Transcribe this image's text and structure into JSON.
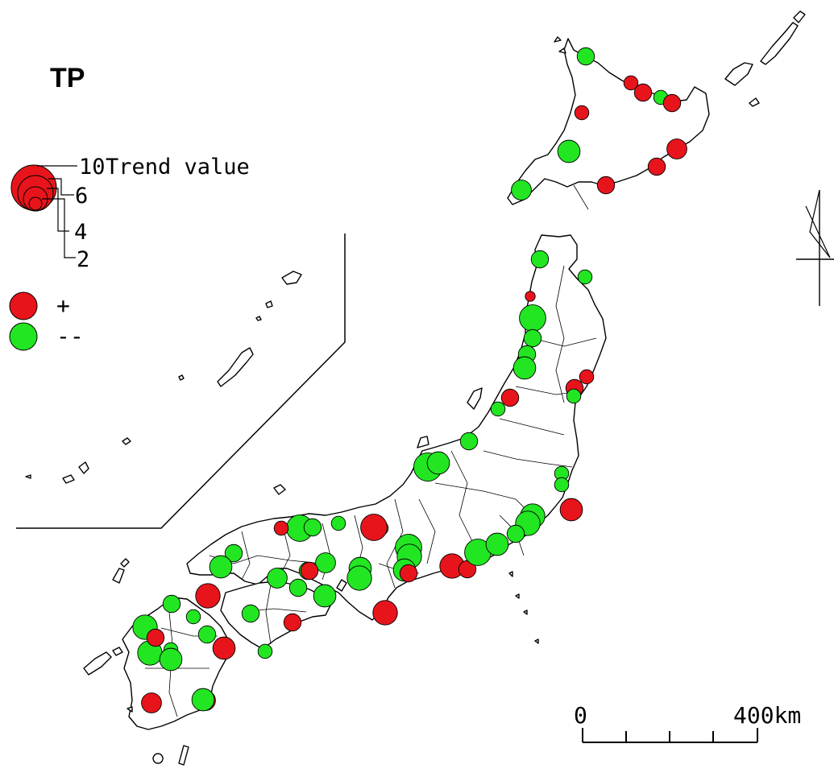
{
  "map": {
    "title": "TP",
    "legend": {
      "size_label": "Trend value",
      "sizes": [
        "10",
        "6",
        "4",
        "2"
      ],
      "signs": [
        {
          "label": "+",
          "color": "#ff0000"
        },
        {
          "label": "--",
          "color": "#00ff00"
        }
      ]
    },
    "scale_bar": {
      "start_label": "0",
      "end_label": "400km"
    },
    "colors": {
      "positive": "#e8141b",
      "negative": "#22e622",
      "outline": "#000000"
    },
    "stations": [
      {
        "sign": "neg",
        "v": 3
      },
      {
        "sign": "pos",
        "v": 2
      },
      {
        "sign": "pos",
        "v": 3
      },
      {
        "sign": "neg",
        "v": 2
      },
      {
        "sign": "pos",
        "v": 3
      },
      {
        "sign": "pos",
        "v": 2
      },
      {
        "sign": "neg",
        "v": 5
      },
      {
        "sign": "pos",
        "v": 4
      },
      {
        "sign": "pos",
        "v": 3
      },
      {
        "sign": "pos",
        "v": 3
      },
      {
        "sign": "neg",
        "v": 4
      },
      {
        "sign": "neg",
        "v": 2
      },
      {
        "sign": "neg",
        "v": 3
      },
      {
        "sign": "pos",
        "v": 1
      },
      {
        "sign": "neg",
        "v": 7
      },
      {
        "sign": "neg",
        "v": 3
      },
      {
        "sign": "neg",
        "v": 3
      },
      {
        "sign": "neg",
        "v": 5
      },
      {
        "sign": "pos",
        "v": 2
      },
      {
        "sign": "pos",
        "v": 3
      },
      {
        "sign": "neg",
        "v": 2
      },
      {
        "sign": "neg",
        "v": 2
      },
      {
        "sign": "neg",
        "v": 8
      },
      {
        "sign": "neg",
        "v": 5
      },
      {
        "sign": "neg",
        "v": 3
      },
      {
        "sign": "pos",
        "v": 3
      },
      {
        "sign": "neg",
        "v": 2
      },
      {
        "sign": "pos",
        "v": 5
      },
      {
        "sign": "neg",
        "v": 6
      },
      {
        "sign": "neg",
        "v": 6
      },
      {
        "sign": "neg",
        "v": 2
      },
      {
        "sign": "pos",
        "v": 6
      },
      {
        "sign": "pos",
        "v": 3
      },
      {
        "sign": "neg",
        "v": 7
      },
      {
        "sign": "neg",
        "v": 5
      },
      {
        "sign": "neg",
        "v": 3
      },
      {
        "sign": "neg",
        "v": 2
      },
      {
        "sign": "pos",
        "v": 6
      },
      {
        "sign": "neg",
        "v": 7
      },
      {
        "sign": "neg",
        "v": 6
      },
      {
        "sign": "neg",
        "v": 5
      },
      {
        "sign": "neg",
        "v": 5
      },
      {
        "sign": "pos",
        "v": 3
      },
      {
        "sign": "neg",
        "v": 6
      },
      {
        "sign": "neg",
        "v": 4
      },
      {
        "sign": "neg",
        "v": 3
      },
      {
        "sign": "neg",
        "v": 3
      },
      {
        "sign": "neg",
        "v": 5
      },
      {
        "sign": "pos",
        "v": 3
      },
      {
        "sign": "neg",
        "v": 7
      },
      {
        "sign": "neg",
        "v": 3
      },
      {
        "sign": "neg",
        "v": 4
      },
      {
        "sign": "pos",
        "v": 2
      },
      {
        "sign": "neg",
        "v": 3
      },
      {
        "sign": "neg",
        "v": 5
      },
      {
        "sign": "neg",
        "v": 3
      },
      {
        "sign": "pos",
        "v": 6
      },
      {
        "sign": "neg",
        "v": 2
      },
      {
        "sign": "neg",
        "v": 3
      },
      {
        "sign": "pos",
        "v": 5
      },
      {
        "sign": "neg",
        "v": 6
      },
      {
        "sign": "neg",
        "v": 6
      },
      {
        "sign": "pos",
        "v": 3
      },
      {
        "sign": "neg",
        "v": 2
      },
      {
        "sign": "neg",
        "v": 5
      },
      {
        "sign": "pos",
        "v": 4
      },
      {
        "sign": "neg",
        "v": 5
      },
      {
        "sign": "pos",
        "v": 4
      },
      {
        "sign": "neg",
        "v": 2
      },
      {
        "sign": "pos",
        "v": 3
      },
      {
        "sign": "neg",
        "v": 3
      },
      {
        "sign": "neg",
        "v": 2
      },
      {
        "sign": "pos",
        "v": 7
      }
    ]
  }
}
